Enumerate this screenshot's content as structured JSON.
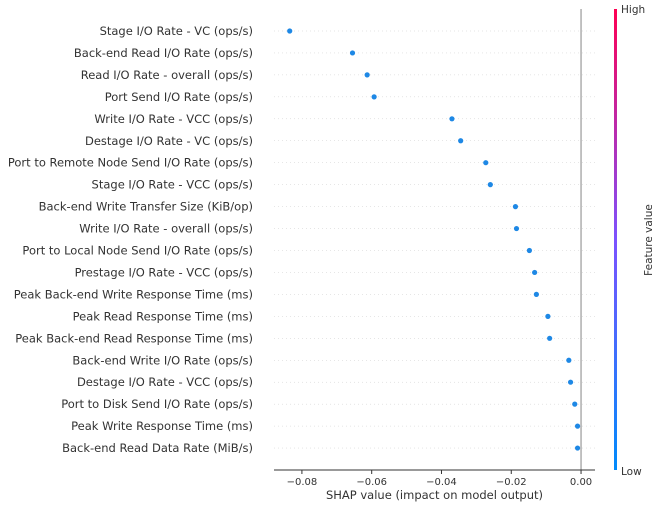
{
  "chart_data": {
    "type": "scatter",
    "xlabel": "SHAP value (impact on model output)",
    "xlim": [
      -0.088,
      0.004
    ],
    "xticks": [
      -0.08,
      -0.06,
      -0.04,
      -0.02,
      0.0
    ],
    "xtick_labels": [
      "−0.08",
      "−0.06",
      "−0.04",
      "−0.02",
      "0.00"
    ],
    "zero_line": 0,
    "features": [
      {
        "name": "Stage I/O Rate - VC (ops/s)",
        "value": -0.0835
      },
      {
        "name": "Back-end Read I/O Rate (ops/s)",
        "value": -0.0655
      },
      {
        "name": "Read I/O Rate - overall (ops/s)",
        "value": -0.0613
      },
      {
        "name": "Port Send I/O Rate (ops/s)",
        "value": -0.0593
      },
      {
        "name": "Write I/O Rate - VCC (ops/s)",
        "value": -0.037
      },
      {
        "name": "Destage I/O Rate - VC (ops/s)",
        "value": -0.0345
      },
      {
        "name": "Port to Remote Node Send I/O Rate (ops/s)",
        "value": -0.0273
      },
      {
        "name": "Stage I/O Rate - VCC (ops/s)",
        "value": -0.026
      },
      {
        "name": "Back-end Write Transfer Size (KiB/op)",
        "value": -0.0188
      },
      {
        "name": "Write I/O Rate - overall (ops/s)",
        "value": -0.0185
      },
      {
        "name": "Port to Local Node Send I/O Rate (ops/s)",
        "value": -0.0148
      },
      {
        "name": "Prestage I/O Rate - VCC (ops/s)",
        "value": -0.0133
      },
      {
        "name": "Peak Back-end Write Response Time (ms)",
        "value": -0.0128
      },
      {
        "name": "Peak Read Response Time (ms)",
        "value": -0.0095
      },
      {
        "name": "Peak Back-end Read Response Time (ms)",
        "value": -0.009
      },
      {
        "name": "Back-end Write I/O Rate (ops/s)",
        "value": -0.0035
      },
      {
        "name": "Destage I/O Rate - VCC (ops/s)",
        "value": -0.003
      },
      {
        "name": "Port to Disk Send I/O Rate (ops/s)",
        "value": -0.0018
      },
      {
        "name": "Peak Write Response Time (ms)",
        "value": -0.001
      },
      {
        "name": "Back-end Read Data Rate (MiB/s)",
        "value": -0.001
      }
    ],
    "point_color": "#1e88e5",
    "colorbar": {
      "title": "Feature value",
      "high_label": "High",
      "low_label": "Low",
      "high_color": "#ff0052",
      "low_color": "#008bfb"
    }
  }
}
